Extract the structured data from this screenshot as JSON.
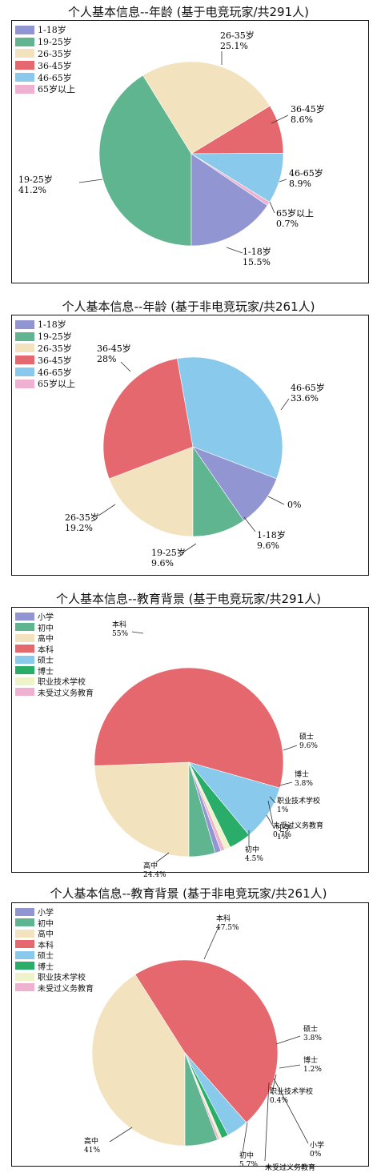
{
  "chart_data": [
    {
      "type": "pie",
      "title": "个人基本信息--年龄 (基于电竞玩家/共291人)",
      "categories": [
        "1-18岁",
        "19-25岁",
        "26-35岁",
        "36-45岁",
        "46-65岁",
        "65岁以上"
      ],
      "values": [
        15.5,
        41.2,
        25.1,
        8.6,
        8.9,
        0.7
      ],
      "labels": [
        {
          "name": "1-18岁",
          "value": "15.5%"
        },
        {
          "name": "19-25岁",
          "value": "41.2%"
        },
        {
          "name": "26-35岁",
          "value": "25.1%"
        },
        {
          "name": "36-45岁",
          "value": "8.6%"
        },
        {
          "name": "46-65岁",
          "value": "8.9%"
        },
        {
          "name": "65岁以上",
          "value": "0.7%"
        }
      ],
      "legend": "top-left",
      "colors": [
        "#9196d2",
        "#5fb58f",
        "#f2e2bd",
        "#e5686e",
        "#88c9ec",
        "#eeb1cf"
      ]
    },
    {
      "type": "pie",
      "title": "个人基本信息--年龄 (基于非电竞玩家/共261人)",
      "categories": [
        "1-18岁",
        "19-25岁",
        "26-35岁",
        "36-45岁",
        "46-65岁",
        "65岁以上"
      ],
      "values": [
        9.6,
        9.6,
        19.2,
        28,
        33.6,
        0
      ],
      "labels": [
        {
          "name": "1-18岁",
          "value": "9.6%"
        },
        {
          "name": "19-25岁",
          "value": "9.6%"
        },
        {
          "name": "26-35岁",
          "value": "19.2%"
        },
        {
          "name": "36-45岁",
          "value": "28%"
        },
        {
          "name": "46-65岁",
          "value": "33.6%"
        },
        {
          "name": "",
          "value": "0%"
        }
      ],
      "legend": "top-left",
      "colors": [
        "#9196d2",
        "#5fb58f",
        "#f2e2bd",
        "#e5686e",
        "#88c9ec",
        "#eeb1cf"
      ]
    },
    {
      "type": "pie",
      "title": "个人基本信息--教育背景 (基于电竞玩家/共291人)",
      "categories": [
        "小学",
        "初中",
        "高中",
        "本科",
        "硕士",
        "博士",
        "职业技术学校",
        "未受过义务教育"
      ],
      "values": [
        1,
        4.5,
        24.4,
        55,
        9.6,
        3.8,
        1,
        0.7
      ],
      "labels": [
        {
          "name": "小学",
          "value": "1%"
        },
        {
          "name": "初中",
          "value": "4.5%"
        },
        {
          "name": "高中",
          "value": "24.4%"
        },
        {
          "name": "本科",
          "value": "55%"
        },
        {
          "name": "硕士",
          "value": "9.6%"
        },
        {
          "name": "博士",
          "value": "3.8%"
        },
        {
          "name": "职业技术学校",
          "value": "1%"
        },
        {
          "name": "未受过义务教育",
          "value": "0.7%"
        }
      ],
      "legend": "top-left",
      "colors": [
        "#9196d2",
        "#5fb58f",
        "#f2e2bd",
        "#e5686e",
        "#88c9ec",
        "#2aad68",
        "#eff3c8",
        "#eeb1cf"
      ]
    },
    {
      "type": "pie",
      "title": "个人基本信息--教育背景 (基于非电竞玩家/共261人)",
      "categories": [
        "小学",
        "初中",
        "高中",
        "本科",
        "硕士",
        "博士",
        "职业技术学校",
        "未受过义务教育"
      ],
      "values": [
        0,
        5.7,
        41,
        47.5,
        3.8,
        1.2,
        0.4,
        0.4
      ],
      "labels": [
        {
          "name": "小学",
          "value": "0%"
        },
        {
          "name": "初中",
          "value": "5.7%"
        },
        {
          "name": "高中",
          "value": "41%"
        },
        {
          "name": "本科",
          "value": "47.5%"
        },
        {
          "name": "硕士",
          "value": "3.8%"
        },
        {
          "name": "博士",
          "value": "1.2%"
        },
        {
          "name": "职业技术学校",
          "value": "0.4%"
        },
        {
          "name": "未受过义务教育",
          "value": "0.4%"
        }
      ],
      "legend": "top-left",
      "colors": [
        "#9196d2",
        "#5fb58f",
        "#f2e2bd",
        "#e5686e",
        "#88c9ec",
        "#2aad68",
        "#eff3c8",
        "#eeb1cf"
      ]
    }
  ]
}
